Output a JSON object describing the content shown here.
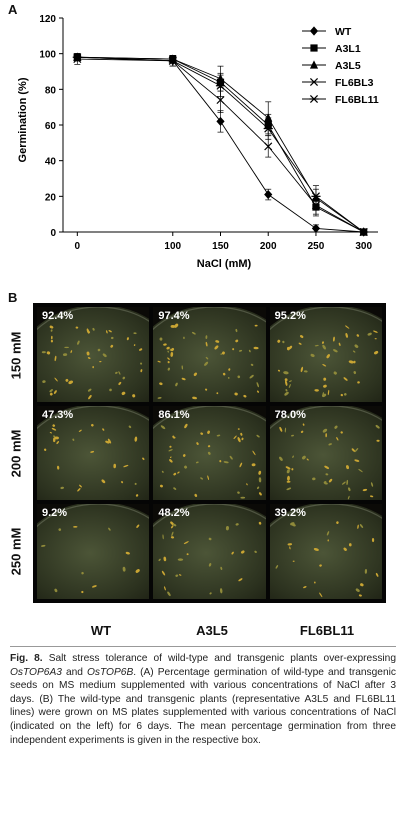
{
  "panel_a_label": "A",
  "panel_b_label": "B",
  "chart_data": {
    "type": "line",
    "x": [
      0,
      100,
      150,
      200,
      250,
      300
    ],
    "xlabel": "NaCl (mM)",
    "ylabel": "Germination (%)",
    "ylim": [
      0,
      120
    ],
    "yticks": [
      0,
      20,
      40,
      60,
      80,
      100,
      120
    ],
    "legend": "top-right",
    "grid": false,
    "series": [
      {
        "name": "WT",
        "marker": "diamond",
        "values": [
          98,
          96,
          62,
          21,
          2,
          0
        ],
        "errors": [
          2,
          3,
          6,
          3,
          2,
          0
        ]
      },
      {
        "name": "A3L1",
        "marker": "square",
        "values": [
          98,
          97,
          84,
          60,
          14,
          0
        ],
        "errors": [
          2,
          2,
          5,
          6,
          5,
          0
        ]
      },
      {
        "name": "A3L5",
        "marker": "triangle",
        "values": [
          98,
          97,
          86,
          64,
          19,
          0
        ],
        "errors": [
          2,
          2,
          7,
          9,
          5,
          0
        ]
      },
      {
        "name": "FL6BL3",
        "marker": "x",
        "values": [
          97,
          96,
          74,
          48,
          15,
          0
        ],
        "errors": [
          3,
          3,
          7,
          6,
          5,
          0
        ]
      },
      {
        "name": "FL6BL11",
        "marker": "star",
        "values": [
          98,
          96,
          82,
          58,
          20,
          0
        ],
        "errors": [
          2,
          3,
          6,
          6,
          6,
          0
        ]
      }
    ]
  },
  "photo_grid": {
    "rows": [
      "150 mM",
      "200 mM",
      "250 mM"
    ],
    "columns": [
      "WT",
      "A3L5",
      "FL6BL11"
    ],
    "percentages": [
      [
        "92.4%",
        "97.4%",
        "95.2%"
      ],
      [
        "47.3%",
        "86.1%",
        "78.0%"
      ],
      [
        "9.2%",
        "48.2%",
        "39.2%"
      ]
    ]
  },
  "caption": {
    "fig_label": "Fig. 8.",
    "part1": " Salt stress tolerance of wild-type and transgenic plants over-expressing ",
    "gene1": "OsTOP6A3",
    "part2": " and ",
    "gene2": "OsTOP6B",
    "part3": ". (A) Percentage germination of wild-type and transgenic seeds on MS medium supplemented with various concentrations of NaCl after 3 days. (B) The wild-type and transgenic plants (representative A3L5 and FL6BL11 lines) were grown on MS plates supplemented with various concentrations of NaCl (indicated on the left) for 6 days. The mean percentage germination from three independent experiments is given in the respective box."
  }
}
